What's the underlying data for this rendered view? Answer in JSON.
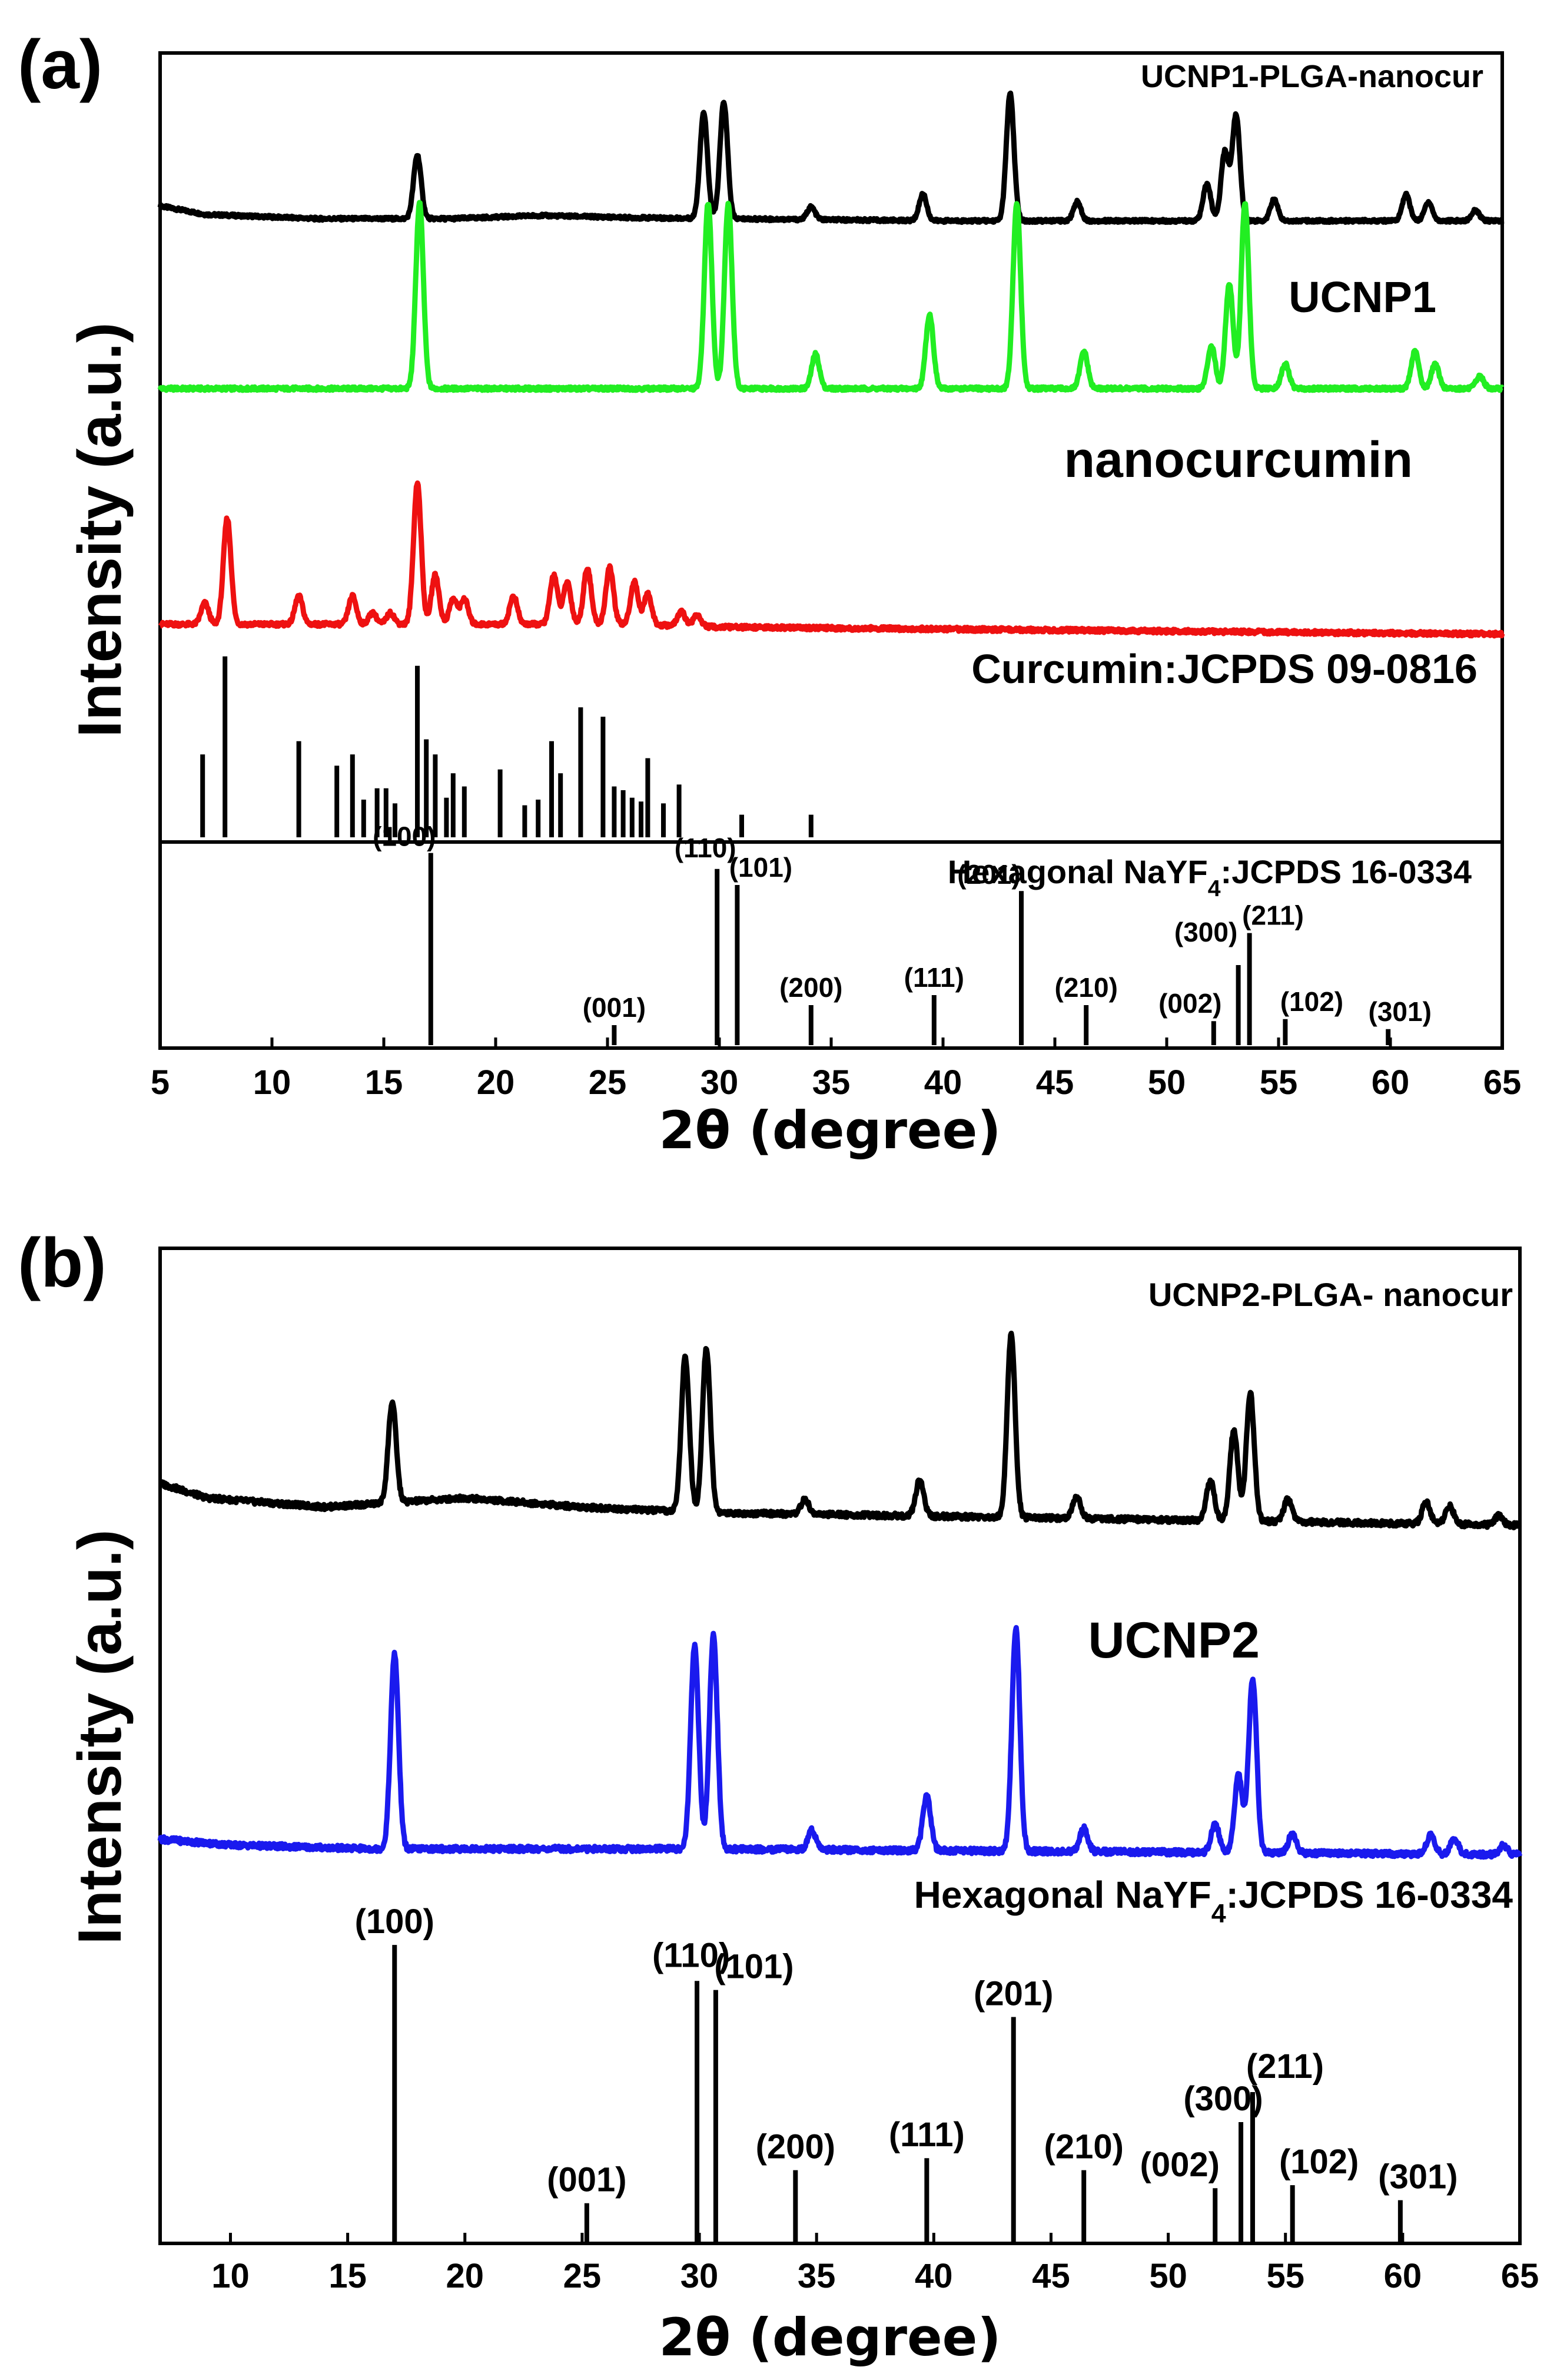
{
  "chart_data": [
    {
      "type": "line",
      "panel_label": "(a)",
      "xlabel": "2θ (degree)",
      "ylabel": "Intensity (a.u.)",
      "xlim": [
        5,
        65
      ],
      "xticks": [
        5,
        10,
        15,
        20,
        25,
        30,
        35,
        40,
        45,
        50,
        55,
        60,
        65
      ],
      "series": [
        {
          "name": "UCNP1-PLGA-nanocur",
          "color": "#000000",
          "baseline": [
            [
              5,
              0.14
            ],
            [
              7,
              0.06
            ],
            [
              12,
              0.02
            ],
            [
              18,
              0.02
            ],
            [
              22,
              0.05
            ],
            [
              26,
              0.03
            ],
            [
              30,
              0.02
            ],
            [
              40,
              0.0
            ],
            [
              50,
              0.0
            ],
            [
              60,
              0.0
            ],
            [
              65,
              0.0
            ]
          ],
          "peaks": [
            [
              16.5,
              0.6
            ],
            [
              29.3,
              1.0
            ],
            [
              30.2,
              1.1
            ],
            [
              34.1,
              0.12
            ],
            [
              39.1,
              0.25
            ],
            [
              43.0,
              1.2
            ],
            [
              46.0,
              0.18
            ],
            [
              51.8,
              0.35
            ],
            [
              52.6,
              0.65
            ],
            [
              53.1,
              1.0
            ],
            [
              54.8,
              0.2
            ],
            [
              60.7,
              0.25
            ],
            [
              61.7,
              0.18
            ],
            [
              63.8,
              0.1
            ]
          ]
        },
        {
          "name": "UCNP1",
          "color": "#22ee22",
          "baseline": [
            [
              5,
              0.0
            ],
            [
              65,
              0.0
            ]
          ],
          "peaks": [
            [
              16.6,
              1.5
            ],
            [
              29.5,
              1.5
            ],
            [
              30.4,
              1.5
            ],
            [
              34.3,
              0.28
            ],
            [
              39.4,
              0.6
            ],
            [
              43.3,
              1.5
            ],
            [
              46.3,
              0.3
            ],
            [
              52.0,
              0.35
            ],
            [
              52.8,
              0.85
            ],
            [
              53.5,
              1.5
            ],
            [
              55.3,
              0.2
            ],
            [
              61.1,
              0.3
            ],
            [
              62.0,
              0.2
            ],
            [
              64.0,
              0.1
            ]
          ]
        },
        {
          "name": "nanocurcumin",
          "color": "#ee1111",
          "baseline": [
            [
              5,
              0.02
            ],
            [
              26,
              0.02
            ],
            [
              30,
              0.0
            ],
            [
              65,
              -0.05
            ]
          ],
          "peaks": [
            [
              7.0,
              0.15
            ],
            [
              8.0,
              0.75
            ],
            [
              11.2,
              0.2
            ],
            [
              13.6,
              0.2
            ],
            [
              14.5,
              0.08
            ],
            [
              15.3,
              0.08
            ],
            [
              16.5,
              1.0
            ],
            [
              17.3,
              0.35
            ],
            [
              18.1,
              0.18
            ],
            [
              18.6,
              0.18
            ],
            [
              20.8,
              0.2
            ],
            [
              22.6,
              0.35
            ],
            [
              23.2,
              0.3
            ],
            [
              24.1,
              0.4
            ],
            [
              25.1,
              0.4
            ],
            [
              26.2,
              0.3
            ],
            [
              26.8,
              0.22
            ],
            [
              28.3,
              0.1
            ],
            [
              29.0,
              0.08
            ]
          ]
        }
      ],
      "reference_patterns": [
        {
          "name": "Curcumin:JCPDS 09-0816",
          "sticks": [
            [
              6.9,
              0.44
            ],
            [
              7.9,
              0.96
            ],
            [
              11.2,
              0.51
            ],
            [
              12.9,
              0.38
            ],
            [
              13.6,
              0.44
            ],
            [
              14.1,
              0.2
            ],
            [
              14.7,
              0.26
            ],
            [
              15.1,
              0.26
            ],
            [
              15.5,
              0.18
            ],
            [
              16.5,
              0.91
            ],
            [
              16.9,
              0.52
            ],
            [
              17.3,
              0.44
            ],
            [
              17.8,
              0.21
            ],
            [
              18.1,
              0.34
            ],
            [
              18.6,
              0.27
            ],
            [
              20.2,
              0.36
            ],
            [
              21.3,
              0.17
            ],
            [
              21.9,
              0.2
            ],
            [
              22.5,
              0.51
            ],
            [
              22.9,
              0.34
            ],
            [
              23.8,
              0.69
            ],
            [
              24.8,
              0.64
            ],
            [
              25.3,
              0.27
            ],
            [
              25.7,
              0.25
            ],
            [
              26.1,
              0.21
            ],
            [
              26.5,
              0.19
            ],
            [
              26.8,
              0.42
            ],
            [
              27.5,
              0.18
            ],
            [
              28.2,
              0.28
            ],
            [
              31.0,
              0.12
            ],
            [
              34.1,
              0.12
            ]
          ]
        },
        {
          "name": "Hexagonal NaYF4:JCPDS 16-0334",
          "sticks": [
            [
              17.1,
              0.96
            ],
            [
              25.3,
              0.1
            ],
            [
              29.9,
              0.88
            ],
            [
              30.8,
              0.8
            ],
            [
              34.1,
              0.2
            ],
            [
              39.6,
              0.25
            ],
            [
              43.5,
              0.77
            ],
            [
              46.4,
              0.2
            ],
            [
              52.1,
              0.12
            ],
            [
              53.2,
              0.4
            ],
            [
              53.7,
              0.56
            ],
            [
              55.3,
              0.13
            ],
            [
              59.9,
              0.08
            ]
          ],
          "hkl": [
            "(100)",
            "(001)",
            "(110)",
            "(101)",
            "(200)",
            "(111)",
            "(201)",
            "(210)",
            "(002)",
            "(300)",
            "(211)",
            "(102)",
            "(301)"
          ]
        }
      ]
    },
    {
      "type": "line",
      "panel_label": "(b)",
      "xlabel": "2θ (degree)",
      "ylabel": "Intensity (a.u.)",
      "xlim": [
        7,
        65
      ],
      "xticks": [
        10,
        15,
        20,
        25,
        30,
        35,
        40,
        45,
        50,
        55,
        60,
        65
      ],
      "series": [
        {
          "name": "UCNP2-PLGA- nanocur",
          "color": "#000000",
          "baseline": [
            [
              7,
              0.18
            ],
            [
              9,
              0.1
            ],
            [
              14,
              0.05
            ],
            [
              20,
              0.1
            ],
            [
              25,
              0.05
            ],
            [
              30,
              0.02
            ],
            [
              40,
              0.0
            ],
            [
              50,
              -0.02
            ],
            [
              65,
              -0.05
            ]
          ],
          "peaks": [
            [
              16.9,
              0.55
            ],
            [
              29.4,
              0.85
            ],
            [
              30.3,
              0.9
            ],
            [
              34.5,
              0.08
            ],
            [
              39.4,
              0.2
            ],
            [
              43.3,
              1.0
            ],
            [
              46.1,
              0.12
            ],
            [
              51.8,
              0.22
            ],
            [
              52.8,
              0.5
            ],
            [
              53.5,
              0.7
            ],
            [
              55.1,
              0.12
            ],
            [
              61.0,
              0.12
            ],
            [
              62.0,
              0.1
            ],
            [
              64.1,
              0.05
            ]
          ]
        },
        {
          "name": "UCNP2",
          "color": "#1a1aee",
          "baseline": [
            [
              7,
              0.05
            ],
            [
              10,
              0.02
            ],
            [
              16,
              0.0
            ],
            [
              30,
              0.0
            ],
            [
              65,
              -0.03
            ]
          ],
          "peaks": [
            [
              17.0,
              1.0
            ],
            [
              29.8,
              1.05
            ],
            [
              30.6,
              1.1
            ],
            [
              34.8,
              0.1
            ],
            [
              39.7,
              0.28
            ],
            [
              43.5,
              1.15
            ],
            [
              46.4,
              0.12
            ],
            [
              52.0,
              0.15
            ],
            [
              53.0,
              0.4
            ],
            [
              53.6,
              0.9
            ],
            [
              55.3,
              0.1
            ],
            [
              61.2,
              0.1
            ],
            [
              62.2,
              0.08
            ],
            [
              64.3,
              0.05
            ]
          ]
        }
      ],
      "reference_patterns": [
        {
          "name": "Hexagonal NaYF4:JCPDS 16-0334",
          "sticks": [
            [
              17.0,
              0.99
            ],
            [
              25.2,
              0.13
            ],
            [
              29.9,
              0.87
            ],
            [
              30.7,
              0.84
            ],
            [
              34.1,
              0.24
            ],
            [
              39.7,
              0.28
            ],
            [
              43.4,
              0.75
            ],
            [
              46.4,
              0.24
            ],
            [
              52.0,
              0.18
            ],
            [
              53.1,
              0.4
            ],
            [
              53.6,
              0.5
            ],
            [
              55.3,
              0.19
            ],
            [
              59.9,
              0.14
            ]
          ],
          "hkl": [
            "(100)",
            "(001)",
            "(110)",
            "(101)",
            "(200)",
            "(111)",
            "(201)",
            "(210)",
            "(002)",
            "(300)",
            "(211)",
            "(102)",
            "(301)"
          ]
        }
      ]
    }
  ]
}
